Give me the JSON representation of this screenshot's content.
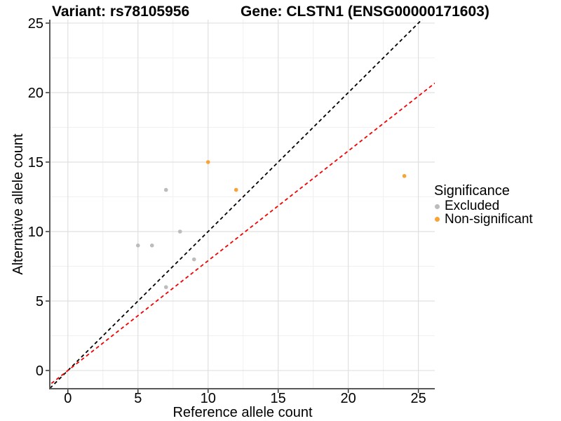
{
  "page": {
    "background": "#FFFFFF"
  },
  "header": {
    "title_left": "Variant: rs78105956",
    "title_right": "Gene: CLSTN1 (ENSG00000171603)"
  },
  "chart_data": {
    "type": "scatter",
    "xlabel": "Reference allele count",
    "ylabel": "Alternative allele count",
    "xticks": [
      0,
      5,
      10,
      15,
      20,
      25
    ],
    "yticks": [
      0,
      5,
      10,
      15,
      20,
      25
    ],
    "xlim": [
      -1.24,
      26.17
    ],
    "ylim": [
      -1.26,
      25.25
    ],
    "grid": {
      "major": true,
      "minor": true,
      "major_color": "#E0E0E0",
      "minor_color": "#F0F0F0"
    },
    "axis": {
      "line_color": "#595959",
      "tick_color": "#333333",
      "tick_label_color": "#000000",
      "tick_label_size": 20
    },
    "series": [
      {
        "name": "Excluded",
        "color": "#BCBCBC",
        "points": [
          {
            "x": 5,
            "y": 9
          },
          {
            "x": 6,
            "y": 9
          },
          {
            "x": 7,
            "y": 6
          },
          {
            "x": 7,
            "y": 13
          },
          {
            "x": 8,
            "y": 10
          },
          {
            "x": 9,
            "y": 8
          }
        ]
      },
      {
        "name": "Non-significant",
        "color": "#F9A334",
        "points": [
          {
            "x": 10,
            "y": 15
          },
          {
            "x": 12,
            "y": 13
          },
          {
            "x": 24,
            "y": 14
          }
        ]
      }
    ],
    "lines": [
      {
        "name": "identity-line",
        "slope": 1,
        "intercept": 0,
        "color": "#000000",
        "style": "dashed"
      },
      {
        "name": "expected-ratio-line",
        "slope": 0.79,
        "intercept": 0,
        "color": "#F40000",
        "style": "dashed"
      }
    ],
    "legend": {
      "title": "Significance",
      "position": "right",
      "entries": [
        {
          "label": "Excluded",
          "color": "#BCBCBC"
        },
        {
          "label": "Non-significant",
          "color": "#F9A334"
        }
      ]
    }
  }
}
